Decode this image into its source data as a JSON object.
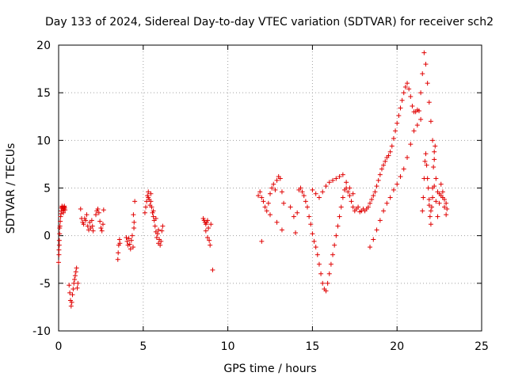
{
  "chart_data": {
    "type": "scatter",
    "title": "Day 133 of 2024, Sidereal Day-to-day VTEC variation (SDTVAR) for receiver sch2",
    "xlabel": "GPS time / hours",
    "ylabel": "SDTVAR / TECUs",
    "xlim": [
      0,
      25
    ],
    "ylim": [
      -10,
      20
    ],
    "xticks": [
      0,
      5,
      10,
      15,
      20,
      25
    ],
    "yticks": [
      -10,
      -5,
      0,
      5,
      10,
      15,
      20
    ],
    "grid": true,
    "marker": "+",
    "series": [
      {
        "name": "SDTVAR",
        "color": "#e00000",
        "x": [
          0.0,
          0.02,
          0.04,
          0.06,
          0.08,
          0.1,
          0.12,
          0.14,
          0.16,
          0.18,
          0.2,
          0.22,
          0.24,
          0.26,
          0.28,
          0.3,
          0.32,
          0.34,
          0.36,
          0.38,
          0.02,
          0.04,
          0.06,
          0.62,
          0.66,
          0.7,
          0.74,
          0.78,
          0.82,
          0.86,
          0.9,
          0.94,
          0.98,
          1.02,
          1.06,
          1.1,
          1.14,
          1.3,
          1.36,
          1.42,
          1.48,
          1.54,
          1.6,
          1.66,
          1.72,
          1.78,
          1.84,
          1.9,
          1.96,
          2.0,
          2.04,
          2.2,
          2.26,
          2.32,
          2.38,
          2.44,
          2.5,
          2.56,
          2.62,
          2.66,
          3.5,
          3.52,
          3.55,
          3.6,
          3.62,
          4.0,
          4.05,
          4.1,
          4.15,
          4.2,
          4.25,
          4.3,
          4.35,
          4.4,
          4.45,
          4.5,
          4.42,
          4.46,
          5.1,
          5.15,
          5.2,
          5.25,
          5.3,
          5.35,
          5.4,
          5.45,
          5.5,
          5.55,
          5.6,
          5.65,
          5.7,
          5.75,
          5.8,
          5.85,
          5.9,
          5.95,
          6.0,
          6.05,
          6.1,
          6.15,
          5.3,
          5.45,
          5.6,
          5.75,
          5.9,
          8.55,
          8.6,
          8.65,
          8.7,
          8.75,
          8.8,
          8.85,
          8.9,
          8.95,
          9.0,
          8.7,
          8.8,
          9.1,
          11.8,
          11.9,
          12.0,
          12.1,
          12.2,
          12.3,
          12.4,
          12.5,
          12.6,
          12.7,
          12.8,
          12.9,
          13.0,
          13.1,
          13.2,
          13.3,
          12.0,
          12.5,
          12.9,
          13.2,
          13.7,
          13.9,
          14.0,
          14.1,
          14.2,
          14.3,
          14.4,
          14.5,
          14.6,
          14.7,
          14.8,
          14.9,
          15.0,
          15.1,
          15.2,
          15.3,
          15.4,
          15.5,
          15.6,
          15.7,
          15.8,
          15.9,
          16.0,
          16.1,
          16.2,
          16.3,
          16.4,
          16.5,
          16.6,
          16.7,
          16.8,
          16.9,
          17.0,
          17.1,
          17.2,
          17.3,
          17.4,
          17.5,
          17.6,
          17.7,
          17.8,
          15.0,
          15.2,
          15.4,
          15.6,
          15.8,
          16.0,
          16.2,
          16.4,
          16.6,
          16.8,
          17.0,
          17.2,
          17.4,
          17.9,
          18.0,
          18.1,
          18.2,
          18.3,
          18.4,
          18.5,
          18.6,
          18.7,
          18.8,
          18.9,
          19.0,
          19.1,
          19.2,
          19.3,
          19.4,
          19.5,
          19.6,
          19.7,
          19.8,
          19.9,
          20.0,
          20.1,
          20.2,
          20.3,
          20.4,
          20.5,
          20.6,
          20.7,
          20.8,
          20.9,
          21.0,
          21.1,
          21.2,
          21.3,
          21.4,
          21.5,
          21.6,
          21.7,
          21.8,
          21.9,
          22.0,
          22.1,
          22.2,
          22.3,
          22.4,
          22.5,
          22.6,
          22.7,
          22.8,
          22.9,
          18.4,
          18.6,
          18.8,
          19.0,
          19.2,
          19.4,
          19.6,
          19.8,
          20.0,
          20.2,
          20.4,
          20.6,
          20.8,
          21.0,
          21.2,
          21.4,
          21.5,
          21.55,
          21.6,
          21.65,
          21.7,
          21.75,
          21.8,
          21.85,
          21.9,
          21.95,
          22.0,
          22.05,
          22.1,
          22.15,
          22.2,
          22.25,
          21.9,
          22.0,
          22.1,
          22.2,
          22.3,
          22.4,
          22.5,
          22.6,
          22.7,
          22.8,
          22.9,
          22.95
        ],
        "y": [
          -2.8,
          -2.0,
          -1.0,
          0.2,
          1.0,
          1.5,
          2.0,
          2.3,
          2.6,
          2.9,
          3.1,
          3.0,
          2.8,
          2.6,
          2.4,
          2.8,
          3.0,
          3.1,
          2.9,
          2.7,
          -1.5,
          -0.5,
          0.8,
          -5.2,
          -6.0,
          -6.8,
          -7.4,
          -7.0,
          -6.2,
          -5.6,
          -5.0,
          -4.6,
          -4.2,
          -3.8,
          -3.4,
          -5.5,
          -5.0,
          2.8,
          1.8,
          1.4,
          1.2,
          1.8,
          1.6,
          2.2,
          1.0,
          0.6,
          1.4,
          0.8,
          1.6,
          1.0,
          0.5,
          2.2,
          2.6,
          2.8,
          2.4,
          1.5,
          0.8,
          0.5,
          1.2,
          2.7,
          -2.5,
          -1.8,
          -1.0,
          -0.4,
          -0.8,
          -0.2,
          -0.6,
          -1.0,
          -0.3,
          -0.9,
          -1.4,
          -0.5,
          0.0,
          -1.2,
          0.8,
          3.6,
          2.2,
          1.4,
          2.4,
          3.0,
          3.6,
          4.2,
          4.6,
          3.8,
          3.2,
          3.6,
          3.0,
          2.4,
          2.0,
          1.6,
          1.0,
          0.4,
          -0.2,
          0.2,
          0.6,
          -0.4,
          -1.0,
          -0.6,
          0.5,
          1.0,
          4.0,
          4.4,
          2.6,
          1.8,
          -0.8,
          1.8,
          1.6,
          1.4,
          1.2,
          1.4,
          1.6,
          0.8,
          -0.5,
          -1.0,
          1.2,
          0.5,
          -0.2,
          -3.6,
          4.2,
          4.6,
          4.0,
          3.6,
          3.0,
          2.6,
          3.4,
          4.4,
          5.0,
          5.4,
          4.8,
          5.8,
          6.2,
          6.0,
          4.6,
          3.4,
          -0.6,
          2.2,
          1.4,
          0.6,
          3.0,
          2.0,
          0.3,
          2.4,
          4.8,
          5.0,
          4.6,
          4.2,
          3.6,
          3.0,
          2.0,
          1.2,
          0.2,
          -0.6,
          -1.2,
          -2.0,
          -3.0,
          -4.0,
          -5.0,
          -5.6,
          -5.8,
          -5.0,
          -4.0,
          -3.0,
          -2.0,
          -1.0,
          0.0,
          1.0,
          2.0,
          3.0,
          4.0,
          4.8,
          5.0,
          4.6,
          4.2,
          3.6,
          3.0,
          2.6,
          2.8,
          3.0,
          2.5,
          4.8,
          4.4,
          4.0,
          4.6,
          5.2,
          5.6,
          5.8,
          6.0,
          6.2,
          6.4,
          5.6,
          5.0,
          4.4,
          2.6,
          2.8,
          2.6,
          2.8,
          3.0,
          3.4,
          3.8,
          4.2,
          4.6,
          5.2,
          5.8,
          6.4,
          7.0,
          7.4,
          7.8,
          8.2,
          8.4,
          8.8,
          9.4,
          10.2,
          11.0,
          11.8,
          12.6,
          13.4,
          14.2,
          15.0,
          15.6,
          16.0,
          15.4,
          14.6,
          13.6,
          13.0,
          13.0,
          13.2,
          13.1,
          15.0,
          17.0,
          19.2,
          18.0,
          16.0,
          14.0,
          12.0,
          10.0,
          8.0,
          6.0,
          4.6,
          4.4,
          4.2,
          4.0,
          3.8,
          3.4,
          -1.2,
          -0.4,
          0.6,
          1.6,
          2.6,
          3.4,
          4.0,
          4.8,
          5.4,
          6.2,
          7.0,
          8.2,
          9.6,
          11.0,
          11.6,
          12.2,
          2.6,
          4.0,
          6.0,
          7.8,
          8.6,
          7.4,
          6.0,
          5.0,
          3.8,
          2.0,
          1.2,
          3.0,
          5.0,
          7.2,
          8.8,
          9.4,
          3.2,
          2.6,
          4.0,
          5.2,
          3.6,
          2.0,
          3.4,
          5.4,
          4.6,
          3.0,
          2.2,
          2.8
        ]
      }
    ]
  }
}
